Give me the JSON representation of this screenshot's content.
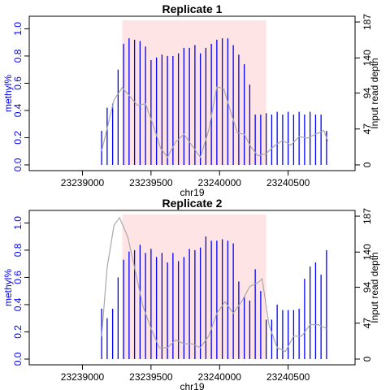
{
  "chart_data": [
    {
      "type": "bar",
      "title": "Replicate 1",
      "xlabel": "chr19",
      "ylabel": "methyl%",
      "y2label": "Input read depth",
      "xlim": [
        23238700,
        23240900
      ],
      "ylim": [
        0,
        1.05
      ],
      "y2lim": [
        0,
        187
      ],
      "xticks": [
        "23239000",
        "23239500",
        "23240000",
        "23240500"
      ],
      "yticks": [
        "0.0",
        "0.2",
        "0.4",
        "0.6",
        "0.8",
        "1.0"
      ],
      "y2ticks": [
        "0",
        "47",
        "94",
        "140",
        "187"
      ],
      "highlight_region": [
        23239290,
        23240340
      ],
      "highlight_color": "#ffe4e6",
      "methylation_color": "#0000ff",
      "depth_color": "#a9a9a9",
      "methylation": {
        "x": [
          23239140,
          23239180,
          23239220,
          23239260,
          23239300,
          23239340,
          23239380,
          23239420,
          23239460,
          23239500,
          23239540,
          23239580,
          23239620,
          23239660,
          23239700,
          23239740,
          23239780,
          23239820,
          23239860,
          23239900,
          23239940,
          23239980,
          23240020,
          23240060,
          23240100,
          23240140,
          23240180,
          23240220,
          23240260,
          23240300,
          23240340,
          23240380,
          23240420,
          23240460,
          23240500,
          23240540,
          23240580,
          23240620,
          23240660,
          23240700,
          23240740,
          23240780
        ],
        "y": [
          0.25,
          0.42,
          0.45,
          0.7,
          0.89,
          0.93,
          0.92,
          0.91,
          0.87,
          0.77,
          0.79,
          0.81,
          0.8,
          0.8,
          0.82,
          0.86,
          0.86,
          0.88,
          0.82,
          0.86,
          0.89,
          0.92,
          0.93,
          0.93,
          0.88,
          0.81,
          0.74,
          0.59,
          0.37,
          0.37,
          0.38,
          0.37,
          0.39,
          0.37,
          0.39,
          0.37,
          0.39,
          0.37,
          0.39,
          0.37,
          0.37,
          0.25
        ]
      },
      "depth": {
        "x": [
          23239140,
          23239230,
          23239290,
          23239345,
          23239400,
          23239460,
          23239520,
          23239570,
          23239620,
          23239680,
          23239740,
          23239800,
          23239860,
          23239920,
          23239980,
          23240030,
          23240080,
          23240130,
          23240180,
          23240230,
          23240280,
          23240340,
          23240400,
          23240460,
          23240520,
          23240580,
          23240640,
          23240700,
          23240760,
          23240790
        ],
        "y": [
          18,
          85,
          101,
          90,
          78,
          80,
          50,
          22,
          10,
          30,
          40,
          25,
          10,
          45,
          102,
          100,
          70,
          42,
          40,
          23,
          12,
          15,
          25,
          32,
          26,
          37,
          35,
          40,
          45,
          31
        ]
      }
    },
    {
      "type": "bar",
      "title": "Replicate 2",
      "xlabel": "chr19",
      "ylabel": "methyl%",
      "y2label": "Input read depth",
      "xlim": [
        23238700,
        23240900
      ],
      "ylim": [
        0,
        1.05
      ],
      "y2lim": [
        0,
        187
      ],
      "xticks": [
        "23239000",
        "23239500",
        "23240000",
        "23240500"
      ],
      "yticks": [
        "0.0",
        "0.2",
        "0.4",
        "0.6",
        "0.8",
        "1.0"
      ],
      "y2ticks": [
        "0",
        "47",
        "94",
        "140",
        "187"
      ],
      "highlight_region": [
        23239290,
        23240340
      ],
      "highlight_color": "#ffe4e6",
      "methylation_color": "#0000ff",
      "depth_color": "#a9a9a9",
      "methylation": {
        "x": [
          23239140,
          23239180,
          23239220,
          23239260,
          23239300,
          23239340,
          23239380,
          23239420,
          23239460,
          23239500,
          23239540,
          23239580,
          23239620,
          23239660,
          23239700,
          23239740,
          23239780,
          23239820,
          23239860,
          23239900,
          23239940,
          23239980,
          23240020,
          23240060,
          23240100,
          23240140,
          23240180,
          23240220,
          23240260,
          23240300,
          23240340,
          23240380,
          23240420,
          23240460,
          23240500,
          23240540,
          23240580,
          23240620,
          23240660,
          23240700,
          23240740,
          23240780
        ],
        "y": [
          0.37,
          0.3,
          0.37,
          0.6,
          0.73,
          0.79,
          0.8,
          0.84,
          0.78,
          0.81,
          0.75,
          0.78,
          0.71,
          0.78,
          0.72,
          0.75,
          0.81,
          0.8,
          0.82,
          0.9,
          0.87,
          0.87,
          0.88,
          0.87,
          0.85,
          0.57,
          0.46,
          0.43,
          0.66,
          0.5,
          0.29,
          0.29,
          0.4,
          0.36,
          0.36,
          0.36,
          0.37,
          0.59,
          0.68,
          0.71,
          0.62,
          0.8
        ]
      },
      "depth": {
        "x": [
          23239140,
          23239180,
          23239230,
          23239270,
          23239330,
          23239380,
          23239440,
          23239500,
          23239560,
          23239620,
          23239680,
          23239740,
          23239800,
          23239860,
          23239920,
          23239980,
          23240040,
          23240100,
          23240160,
          23240220,
          23240280,
          23240310,
          23240360,
          23240420,
          23240480,
          23240540,
          23240600,
          23240660,
          23240720,
          23240780
        ],
        "y": [
          30,
          120,
          175,
          185,
          160,
          120,
          70,
          40,
          15,
          15,
          25,
          20,
          20,
          15,
          30,
          60,
          75,
          60,
          75,
          95,
          100,
          105,
          45,
          15,
          10,
          30,
          30,
          45,
          45,
          40
        ]
      }
    }
  ]
}
